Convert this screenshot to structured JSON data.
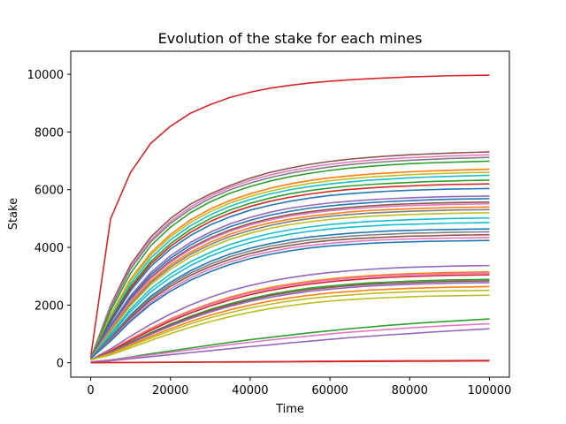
{
  "chart_data": {
    "type": "line",
    "title": "Evolution of the stake for each mines",
    "xlabel": "Time",
    "ylabel": "Stake",
    "xlim": [
      -5000,
      105000
    ],
    "ylim": [
      -500,
      10800
    ],
    "xticks": [
      0,
      20000,
      40000,
      60000,
      80000,
      100000
    ],
    "yticks": [
      0,
      2000,
      4000,
      6000,
      8000,
      10000
    ],
    "x": [
      0,
      5000,
      10000,
      15000,
      20000,
      25000,
      30000,
      35000,
      40000,
      45000,
      50000,
      55000,
      60000,
      65000,
      70000,
      75000,
      80000,
      85000,
      90000,
      95000,
      100000
    ],
    "grid": false,
    "legend": "none",
    "series": [
      {
        "color": "#d62728",
        "values": [
          200,
          5000,
          6600,
          7600,
          8200,
          8650,
          8950,
          9200,
          9380,
          9520,
          9620,
          9700,
          9760,
          9810,
          9850,
          9880,
          9910,
          9930,
          9950,
          9960,
          9970
        ]
      },
      {
        "color": "#8c564b",
        "values": [
          150,
          2000,
          3400,
          4350,
          5000,
          5500,
          5850,
          6150,
          6400,
          6600,
          6750,
          6880,
          6980,
          7060,
          7120,
          7170,
          7210,
          7240,
          7270,
          7290,
          7310
        ]
      },
      {
        "color": "#e377c2",
        "values": [
          150,
          1950,
          3300,
          4250,
          4900,
          5400,
          5780,
          6080,
          6320,
          6510,
          6660,
          6780,
          6880,
          6960,
          7020,
          7070,
          7110,
          7140,
          7170,
          7190,
          7210
        ]
      },
      {
        "color": "#7f7f7f",
        "values": [
          150,
          1900,
          3250,
          4180,
          4830,
          5320,
          5700,
          6000,
          6230,
          6420,
          6570,
          6690,
          6790,
          6870,
          6930,
          6980,
          7020,
          7050,
          7080,
          7100,
          7120
        ]
      },
      {
        "color": "#2ca02c",
        "values": [
          150,
          1800,
          3100,
          4050,
          4700,
          5200,
          5580,
          5880,
          6110,
          6300,
          6450,
          6570,
          6670,
          6750,
          6810,
          6860,
          6900,
          6930,
          6950,
          6970,
          6990
        ]
      },
      {
        "color": "#ff7f0e",
        "values": [
          150,
          1650,
          2900,
          3800,
          4450,
          4950,
          5330,
          5630,
          5860,
          6050,
          6200,
          6320,
          6410,
          6480,
          6540,
          6580,
          6620,
          6650,
          6670,
          6690,
          6710
        ]
      },
      {
        "color": "#bcbd22",
        "values": [
          150,
          1600,
          2850,
          3720,
          4370,
          4860,
          5240,
          5540,
          5770,
          5950,
          6100,
          6220,
          6310,
          6380,
          6440,
          6480,
          6520,
          6550,
          6570,
          6590,
          6600
        ]
      },
      {
        "color": "#17becf",
        "values": [
          150,
          1550,
          2750,
          3620,
          4260,
          4750,
          5130,
          5430,
          5660,
          5850,
          6000,
          6110,
          6200,
          6270,
          6330,
          6370,
          6410,
          6440,
          6460,
          6480,
          6500
        ]
      },
      {
        "color": "#2ca02c",
        "values": [
          150,
          1500,
          2650,
          3500,
          4130,
          4620,
          5000,
          5300,
          5530,
          5710,
          5860,
          5970,
          6060,
          6130,
          6180,
          6220,
          6250,
          6280,
          6300,
          6320,
          6330
        ]
      },
      {
        "color": "#d62728",
        "values": [
          150,
          1450,
          2580,
          3420,
          4040,
          4520,
          4900,
          5190,
          5420,
          5600,
          5740,
          5850,
          5940,
          6010,
          6060,
          6100,
          6130,
          6160,
          6180,
          6190,
          6200
        ]
      },
      {
        "color": "#1f77b4",
        "values": [
          150,
          1400,
          2500,
          3330,
          3940,
          4410,
          4780,
          5060,
          5290,
          5460,
          5600,
          5710,
          5800,
          5860,
          5910,
          5950,
          5980,
          6000,
          6020,
          6030,
          6040
        ]
      },
      {
        "color": "#9467bd",
        "values": [
          150,
          1300,
          2330,
          3120,
          3710,
          4170,
          4530,
          4820,
          5040,
          5220,
          5360,
          5460,
          5540,
          5600,
          5650,
          5690,
          5720,
          5740,
          5760,
          5770,
          5780
        ]
      },
      {
        "color": "#1f77b4",
        "values": [
          150,
          1250,
          2260,
          3040,
          3620,
          4080,
          4440,
          4720,
          4940,
          5120,
          5250,
          5360,
          5440,
          5500,
          5550,
          5590,
          5620,
          5650,
          5670,
          5680,
          5690
        ]
      },
      {
        "color": "#8c564b",
        "values": [
          150,
          1200,
          2190,
          2960,
          3530,
          3980,
          4330,
          4610,
          4830,
          5000,
          5140,
          5240,
          5320,
          5390,
          5440,
          5480,
          5510,
          5530,
          5550,
          5560,
          5570
        ]
      },
      {
        "color": "#e377c2",
        "values": [
          150,
          1180,
          2150,
          2910,
          3480,
          3930,
          4280,
          4560,
          4780,
          4950,
          5090,
          5190,
          5270,
          5330,
          5380,
          5420,
          5450,
          5470,
          5490,
          5500,
          5510
        ]
      },
      {
        "color": "#ff7f0e",
        "values": [
          150,
          1130,
          2080,
          2830,
          3390,
          3830,
          4180,
          4460,
          4680,
          4850,
          4980,
          5080,
          5160,
          5230,
          5280,
          5310,
          5340,
          5360,
          5380,
          5390,
          5400
        ]
      },
      {
        "color": "#7f7f7f",
        "values": [
          150,
          1100,
          2030,
          2770,
          3320,
          3760,
          4100,
          4380,
          4590,
          4760,
          4900,
          5000,
          5080,
          5140,
          5190,
          5220,
          5250,
          5270,
          5290,
          5300,
          5310
        ]
      },
      {
        "color": "#bcbd22",
        "values": [
          150,
          1070,
          1980,
          2700,
          3240,
          3670,
          4010,
          4280,
          4490,
          4660,
          4790,
          4890,
          4970,
          5030,
          5080,
          5110,
          5140,
          5160,
          5180,
          5190,
          5200
        ]
      },
      {
        "color": "#17becf",
        "values": [
          150,
          1000,
          1860,
          2560,
          3080,
          3500,
          3830,
          4100,
          4310,
          4480,
          4610,
          4710,
          4790,
          4850,
          4900,
          4930,
          4960,
          4980,
          5000,
          5010,
          5020
        ]
      },
      {
        "color": "#17becf",
        "values": [
          150,
          950,
          1780,
          2450,
          2960,
          3370,
          3700,
          3960,
          4170,
          4330,
          4460,
          4560,
          4640,
          4700,
          4740,
          4780,
          4800,
          4820,
          4840,
          4850,
          4860
        ]
      },
      {
        "color": "#1f77b4",
        "values": [
          150,
          880,
          1660,
          2300,
          2790,
          3190,
          3510,
          3770,
          3970,
          4130,
          4260,
          4360,
          4430,
          4490,
          4530,
          4570,
          4590,
          4610,
          4620,
          4630,
          4640
        ]
      },
      {
        "color": "#7f7f7f",
        "values": [
          150,
          850,
          1610,
          2230,
          2720,
          3110,
          3420,
          3680,
          3880,
          4040,
          4160,
          4260,
          4330,
          4390,
          4430,
          4460,
          4490,
          4500,
          4520,
          4530,
          4540
        ]
      },
      {
        "color": "#8c564b",
        "values": [
          150,
          820,
          1560,
          2170,
          2650,
          3030,
          3340,
          3590,
          3790,
          3950,
          4070,
          4170,
          4240,
          4290,
          4330,
          4360,
          4390,
          4400,
          4420,
          4430,
          4440
        ]
      },
      {
        "color": "#e377c2",
        "values": [
          150,
          780,
          1490,
          2090,
          2560,
          2940,
          3250,
          3500,
          3700,
          3850,
          3980,
          4070,
          4140,
          4200,
          4240,
          4270,
          4290,
          4310,
          4320,
          4330,
          4340
        ]
      },
      {
        "color": "#1f77b4",
        "values": [
          150,
          750,
          1440,
          2020,
          2480,
          2860,
          3160,
          3410,
          3610,
          3760,
          3880,
          3980,
          4050,
          4100,
          4140,
          4170,
          4190,
          4210,
          4220,
          4230,
          4240
        ]
      },
      {
        "color": "#9467bd",
        "values": [
          100,
          480,
          920,
          1330,
          1690,
          2000,
          2270,
          2500,
          2680,
          2830,
          2950,
          3050,
          3130,
          3190,
          3240,
          3280,
          3310,
          3330,
          3350,
          3360,
          3370
        ]
      },
      {
        "color": "#ff7f0e",
        "values": [
          100,
          430,
          820,
          1190,
          1520,
          1810,
          2060,
          2280,
          2460,
          2610,
          2730,
          2830,
          2910,
          2970,
          3020,
          3060,
          3090,
          3110,
          3130,
          3140,
          3150
        ]
      },
      {
        "color": "#e377c2",
        "values": [
          100,
          420,
          800,
          1160,
          1490,
          1780,
          2030,
          2240,
          2420,
          2570,
          2690,
          2790,
          2870,
          2930,
          2980,
          3020,
          3050,
          3070,
          3090,
          3100,
          3110
        ]
      },
      {
        "color": "#d62728",
        "values": [
          100,
          400,
          770,
          1120,
          1440,
          1720,
          1970,
          2180,
          2360,
          2510,
          2630,
          2730,
          2810,
          2870,
          2920,
          2960,
          2990,
          3010,
          3030,
          3040,
          3050
        ]
      },
      {
        "color": "#2ca02c",
        "values": [
          100,
          370,
          710,
          1040,
          1340,
          1610,
          1850,
          2050,
          2220,
          2370,
          2490,
          2590,
          2660,
          2720,
          2770,
          2800,
          2830,
          2850,
          2870,
          2880,
          2890
        ]
      },
      {
        "color": "#8c564b",
        "values": [
          100,
          360,
          690,
          1010,
          1310,
          1580,
          1810,
          2010,
          2180,
          2330,
          2440,
          2540,
          2610,
          2670,
          2720,
          2750,
          2780,
          2800,
          2820,
          2830,
          2840
        ]
      },
      {
        "color": "#9467bd",
        "values": [
          100,
          350,
          670,
          980,
          1270,
          1530,
          1760,
          1960,
          2130,
          2270,
          2380,
          2480,
          2550,
          2610,
          2660,
          2690,
          2720,
          2740,
          2760,
          2770,
          2780
        ]
      },
      {
        "color": "#ff7f0e",
        "values": [
          100,
          320,
          620,
          910,
          1180,
          1430,
          1650,
          1840,
          2000,
          2140,
          2250,
          2340,
          2420,
          2470,
          2520,
          2550,
          2580,
          2600,
          2620,
          2630,
          2640
        ]
      },
      {
        "color": "#bcbd22",
        "values": [
          100,
          300,
          580,
          850,
          1110,
          1350,
          1560,
          1740,
          1900,
          2030,
          2140,
          2230,
          2300,
          2350,
          2400,
          2430,
          2460,
          2480,
          2490,
          2500,
          2510
        ]
      },
      {
        "color": "#bcbd22",
        "values": [
          100,
          270,
          520,
          770,
          1010,
          1230,
          1430,
          1600,
          1750,
          1880,
          1980,
          2070,
          2140,
          2190,
          2230,
          2260,
          2290,
          2310,
          2320,
          2330,
          2340
        ]
      },
      {
        "color": "#2ca02c",
        "values": [
          30,
          100,
          200,
          310,
          410,
          510,
          610,
          710,
          800,
          880,
          960,
          1040,
          1110,
          1180,
          1240,
          1300,
          1350,
          1400,
          1440,
          1480,
          1520
        ]
      },
      {
        "color": "#e377c2",
        "values": [
          30,
          90,
          180,
          270,
          360,
          450,
          540,
          630,
          710,
          790,
          860,
          930,
          1000,
          1060,
          1110,
          1160,
          1210,
          1250,
          1290,
          1320,
          1350
        ]
      },
      {
        "color": "#9467bd",
        "values": [
          20,
          70,
          140,
          210,
          280,
          350,
          420,
          490,
          560,
          620,
          690,
          750,
          810,
          870,
          920,
          970,
          1010,
          1060,
          1100,
          1140,
          1180
        ]
      },
      {
        "color": "#d62728",
        "values": [
          5,
          8,
          12,
          16,
          20,
          24,
          28,
          32,
          36,
          40,
          44,
          48,
          52,
          56,
          60,
          64,
          67,
          70,
          73,
          76,
          80
        ]
      },
      {
        "color": "#d62728",
        "values": [
          3,
          6,
          9,
          12,
          15,
          18,
          21,
          24,
          27,
          30,
          33,
          36,
          39,
          42,
          45,
          48,
          51,
          54,
          57,
          60,
          63
        ]
      }
    ]
  }
}
